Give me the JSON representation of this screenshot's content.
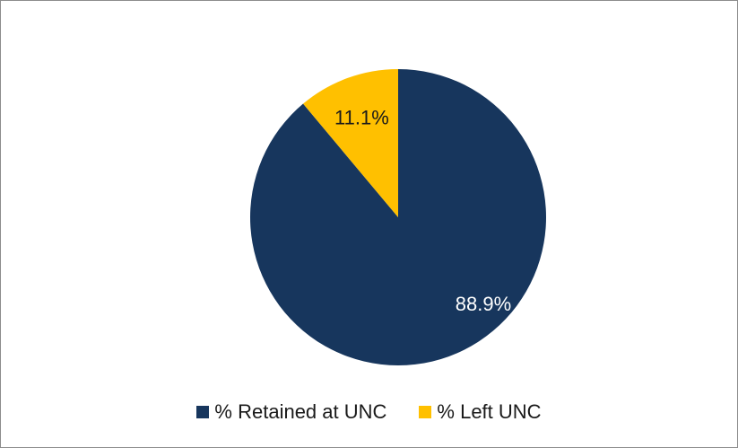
{
  "chart_data": {
    "type": "pie",
    "title": "",
    "categories": [
      "% Retained at UNC",
      "% Left UNC"
    ],
    "values": [
      88.9,
      11.1
    ],
    "data_labels": [
      "88.9%",
      "11.1%"
    ],
    "colors": [
      "#17365d",
      "#ffc000"
    ],
    "label_colors": [
      "#ffffff",
      "#1a1a1a"
    ],
    "legend_position": "bottom"
  }
}
